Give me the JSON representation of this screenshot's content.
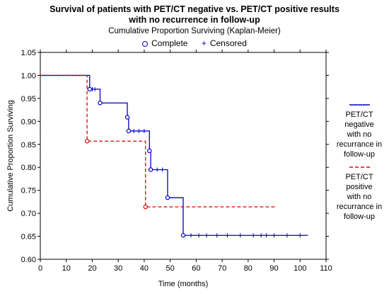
{
  "header": {
    "title_line1": "Survival of patients with PET/CT negative vs. PET/CT positive results",
    "title_line2": "with no recurrence in follow-up",
    "subtitle": "Cumulative Proportion Surviving (Kaplan-Meier)"
  },
  "legend_top": {
    "complete": "Complete",
    "censored": "Censored"
  },
  "side_legend": [
    {
      "lines": [
        "PET/CT",
        "negative",
        "with no",
        "recurrance in",
        "follow-up"
      ]
    },
    {
      "lines": [
        "PET/CT",
        "positive",
        "with no",
        "recurrance in",
        "follow-up"
      ]
    }
  ],
  "chart_data": {
    "type": "line",
    "title": "Survival of patients with PET/CT negative vs. PET/CT positive results with no recurrence in follow-up",
    "subtitle": "Cumulative Proportion Surviving (Kaplan-Meier)",
    "xlabel": "Time (months)",
    "ylabel": "Cumulative Proportion Surviving",
    "xlim": [
      0,
      110
    ],
    "ylim": [
      0.6,
      1.05
    ],
    "xticks": [
      0,
      10,
      20,
      30,
      40,
      50,
      60,
      70,
      80,
      90,
      100,
      110
    ],
    "yticks": [
      0.6,
      0.65,
      0.7,
      0.75,
      0.8,
      0.85,
      0.9,
      0.95,
      1.0,
      1.05
    ],
    "ytick_labels": [
      "0.60",
      "0.65",
      "0.70",
      "0.75",
      "0.80",
      "0.85",
      "0.90",
      "0.95",
      "1.00",
      "1.05"
    ],
    "grid": false,
    "series": [
      {
        "name": "PET/CT negative with no recurrance in follow-up",
        "color": "#0000c0",
        "style": "solid",
        "step": [
          [
            0,
            1.0
          ],
          [
            19,
            0.97
          ],
          [
            23,
            0.94
          ],
          [
            33.5,
            0.909
          ],
          [
            34,
            0.879
          ],
          [
            42,
            0.836
          ],
          [
            42.5,
            0.795
          ],
          [
            49,
            0.734
          ],
          [
            55,
            0.652
          ],
          [
            103,
            0.652
          ]
        ],
        "events": [
          [
            19,
            0.97
          ],
          [
            23,
            0.94
          ],
          [
            33.5,
            0.909
          ],
          [
            34,
            0.879
          ],
          [
            42,
            0.836
          ],
          [
            42.5,
            0.795
          ],
          [
            49,
            0.734
          ],
          [
            55,
            0.652
          ]
        ],
        "censored": [
          [
            20,
            0.97
          ],
          [
            21,
            0.97
          ],
          [
            36,
            0.879
          ],
          [
            38,
            0.879
          ],
          [
            40,
            0.879
          ],
          [
            45,
            0.795
          ],
          [
            47,
            0.795
          ],
          [
            58,
            0.652
          ],
          [
            61,
            0.652
          ],
          [
            64,
            0.652
          ],
          [
            68,
            0.652
          ],
          [
            72,
            0.652
          ],
          [
            77,
            0.652
          ],
          [
            82,
            0.652
          ],
          [
            85,
            0.652
          ],
          [
            87,
            0.652
          ],
          [
            90,
            0.652
          ],
          [
            95,
            0.652
          ],
          [
            100,
            0.652
          ]
        ]
      },
      {
        "name": "PET/CT positive with no recurrance in follow-up",
        "color": "#e00000",
        "style": "dashed",
        "step": [
          [
            0,
            1.0
          ],
          [
            18,
            0.857
          ],
          [
            40.5,
            0.714
          ],
          [
            91,
            0.714
          ]
        ],
        "events": [
          [
            18,
            0.857
          ],
          [
            40.5,
            0.714
          ]
        ],
        "censored": []
      }
    ]
  }
}
